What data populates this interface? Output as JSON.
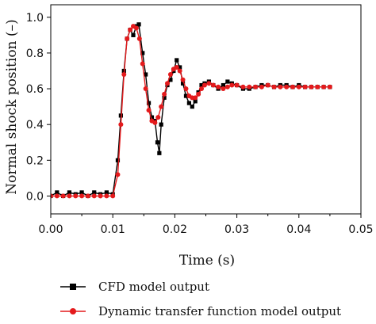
{
  "chart_data": {
    "type": "line",
    "xlabel": "Time (s)",
    "ylabel": "Normal shock position (–)",
    "xlim": [
      0.0,
      0.05
    ],
    "ylim": [
      -0.1,
      1.07
    ],
    "xticks": [
      "0.00",
      "0.01",
      "0.02",
      "0.03",
      "0.04",
      "0.05"
    ],
    "yticks": [
      "0.0",
      "0.2",
      "0.4",
      "0.6",
      "0.8",
      "1.0"
    ],
    "xtick_values": [
      0.0,
      0.01,
      0.02,
      0.03,
      0.04,
      0.05
    ],
    "ytick_values": [
      0.0,
      0.2,
      0.4,
      0.6,
      0.8,
      1.0
    ],
    "grid": false,
    "legend_position": "bottom",
    "series": [
      {
        "name": "CFD model output",
        "color": "#000000",
        "marker": "square",
        "x": [
          0.0,
          0.001,
          0.002,
          0.003,
          0.004,
          0.005,
          0.006,
          0.007,
          0.008,
          0.009,
          0.01,
          0.0108,
          0.0113,
          0.0118,
          0.0123,
          0.0128,
          0.0133,
          0.0138,
          0.0142,
          0.0148,
          0.0153,
          0.0158,
          0.0163,
          0.0168,
          0.0172,
          0.0175,
          0.0178,
          0.0183,
          0.0188,
          0.0193,
          0.0198,
          0.0203,
          0.0208,
          0.0213,
          0.0218,
          0.0223,
          0.0228,
          0.0233,
          0.0238,
          0.0243,
          0.0248,
          0.0255,
          0.0262,
          0.027,
          0.0278,
          0.0285,
          0.0292,
          0.03,
          0.031,
          0.032,
          0.033,
          0.034,
          0.035,
          0.036,
          0.037,
          0.038,
          0.039,
          0.04,
          0.041,
          0.042,
          0.043,
          0.044,
          0.045
        ],
        "y": [
          0.0,
          0.02,
          0.0,
          0.02,
          0.01,
          0.02,
          0.0,
          0.02,
          0.01,
          0.02,
          0.01,
          0.2,
          0.45,
          0.7,
          0.88,
          0.93,
          0.9,
          0.95,
          0.96,
          0.8,
          0.68,
          0.52,
          0.44,
          0.42,
          0.3,
          0.24,
          0.4,
          0.55,
          0.62,
          0.65,
          0.7,
          0.76,
          0.72,
          0.63,
          0.56,
          0.52,
          0.5,
          0.53,
          0.58,
          0.62,
          0.63,
          0.64,
          0.62,
          0.6,
          0.62,
          0.64,
          0.63,
          0.62,
          0.6,
          0.6,
          0.61,
          0.62,
          0.62,
          0.61,
          0.62,
          0.62,
          0.61,
          0.62,
          0.61,
          0.61,
          0.61,
          0.61,
          0.61
        ]
      },
      {
        "name": "Dynamic transfer function model output",
        "color": "#e41a1c",
        "marker": "circle",
        "x": [
          0.0,
          0.001,
          0.002,
          0.003,
          0.004,
          0.005,
          0.006,
          0.007,
          0.008,
          0.009,
          0.01,
          0.0108,
          0.0113,
          0.0118,
          0.0123,
          0.0128,
          0.0133,
          0.0138,
          0.0143,
          0.0148,
          0.0153,
          0.0158,
          0.0163,
          0.0168,
          0.0173,
          0.0178,
          0.0183,
          0.0188,
          0.0193,
          0.0198,
          0.0203,
          0.0208,
          0.0213,
          0.0218,
          0.0223,
          0.0228,
          0.0233,
          0.0238,
          0.0243,
          0.0248,
          0.0255,
          0.0262,
          0.027,
          0.0278,
          0.0285,
          0.0292,
          0.03,
          0.031,
          0.032,
          0.033,
          0.034,
          0.035,
          0.036,
          0.037,
          0.038,
          0.039,
          0.04,
          0.041,
          0.042,
          0.043,
          0.044,
          0.045
        ],
        "y": [
          0.0,
          0.0,
          0.0,
          0.0,
          0.0,
          0.0,
          0.0,
          0.0,
          0.0,
          0.0,
          0.0,
          0.12,
          0.4,
          0.68,
          0.88,
          0.93,
          0.95,
          0.94,
          0.88,
          0.74,
          0.6,
          0.48,
          0.42,
          0.41,
          0.44,
          0.5,
          0.57,
          0.63,
          0.68,
          0.71,
          0.72,
          0.7,
          0.65,
          0.6,
          0.56,
          0.55,
          0.55,
          0.57,
          0.6,
          0.62,
          0.63,
          0.62,
          0.61,
          0.6,
          0.61,
          0.62,
          0.62,
          0.61,
          0.61,
          0.61,
          0.61,
          0.62,
          0.61,
          0.61,
          0.61,
          0.61,
          0.61,
          0.61,
          0.61,
          0.61,
          0.61,
          0.61
        ]
      }
    ]
  }
}
